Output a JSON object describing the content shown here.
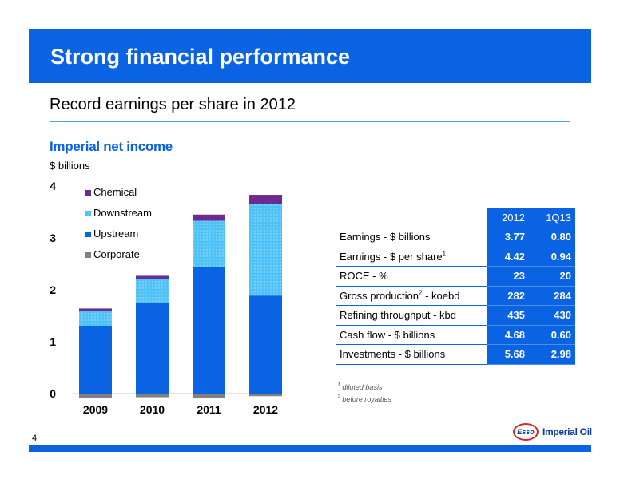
{
  "header": {
    "title": "Strong financial performance",
    "subtitle": "Record earnings per share in 2012"
  },
  "chart": {
    "title": "Imperial net income",
    "unit": "$ billions"
  },
  "chart_data": {
    "type": "bar",
    "stacked": true,
    "categories": [
      "2009",
      "2010",
      "2011",
      "2012"
    ],
    "series": [
      {
        "name": "Corporate",
        "values": [
          -0.08,
          -0.07,
          -0.09,
          -0.05
        ],
        "color": "#808080"
      },
      {
        "name": "Upstream",
        "values": [
          1.31,
          1.75,
          2.45,
          1.89
        ],
        "color": "#0a63e3"
      },
      {
        "name": "Downstream",
        "values": [
          0.28,
          0.45,
          0.88,
          1.77
        ],
        "color": "#4fc3f7"
      },
      {
        "name": "Chemical",
        "values": [
          0.05,
          0.07,
          0.12,
          0.17
        ],
        "color": "#6a2c91"
      }
    ],
    "legend_order": [
      "Chemical",
      "Downstream",
      "Upstream",
      "Corporate"
    ],
    "ylim": [
      0,
      4
    ],
    "yticks": [
      "0",
      "1",
      "2",
      "3",
      "4"
    ],
    "xlabel": "",
    "ylabel": "",
    "legend_position": "top-left",
    "grid": false
  },
  "table": {
    "columns": [
      "2012",
      "1Q13"
    ],
    "rows": [
      {
        "label": "Earnings - $ billions",
        "sup": "",
        "suffix": "",
        "v2012": "3.77",
        "v1q13": "0.80"
      },
      {
        "label": "Earnings - $ per share",
        "sup": "1",
        "suffix": "",
        "v2012": "4.42",
        "v1q13": "0.94"
      },
      {
        "label": "ROCE - %",
        "sup": "",
        "suffix": "",
        "v2012": "23",
        "v1q13": "20"
      },
      {
        "label": "Gross production",
        "sup": "2",
        "suffix": " - koebd",
        "v2012": "282",
        "v1q13": "284"
      },
      {
        "label": "Refining throughput - kbd",
        "sup": "",
        "suffix": "",
        "v2012": "435",
        "v1q13": "430"
      },
      {
        "label": "Cash flow - $ billions",
        "sup": "",
        "suffix": "",
        "v2012": "4.68",
        "v1q13": "0.60"
      },
      {
        "label": "Investments - $ billions",
        "sup": "",
        "suffix": "",
        "v2012": "5.68",
        "v1q13": "2.98"
      }
    ]
  },
  "footnotes": [
    {
      "num": "1",
      "text": " diluted basis"
    },
    {
      "num": "2",
      "text": " before royalties"
    }
  ],
  "page_number": "4",
  "logo": {
    "esso": "Esso",
    "text": "Imperial Oil",
    "icon": "esso-logo-icon"
  },
  "colors": {
    "brand_blue": "#0a63e3",
    "divider_blue": "#4aa3e8"
  }
}
